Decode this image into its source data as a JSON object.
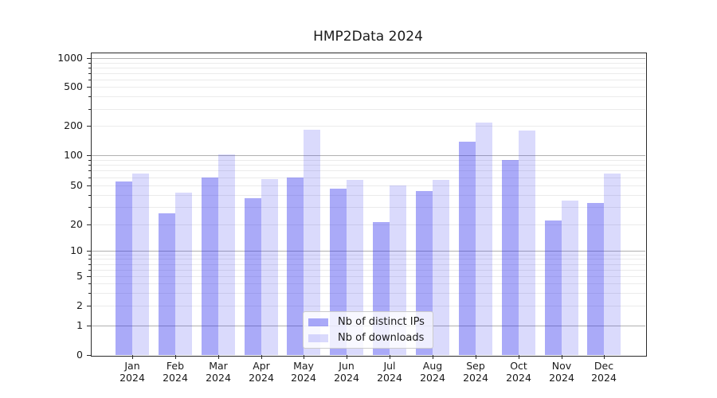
{
  "figure": {
    "background": "#ffffff",
    "text_color": "#1a1a1a"
  },
  "chart_data": {
    "type": "bar",
    "title": "HMP2Data 2024",
    "categories": [
      "Jan 2024",
      "Feb 2024",
      "Mar 2024",
      "Apr 2024",
      "May 2024",
      "Jun 2024",
      "Jul 2024",
      "Aug 2024",
      "Sep 2024",
      "Oct 2024",
      "Nov 2024",
      "Dec 2024"
    ],
    "series": [
      {
        "name": "Nb of distinct IPs",
        "color": "rgba(45,45,238,0.405)",
        "color_hex": "#aaaaf8",
        "values": [
          55,
          26,
          60,
          37,
          60,
          46,
          21,
          44,
          139,
          90,
          22,
          33
        ]
      },
      {
        "name": "Nb of downloads",
        "color": "rgba(45,45,238,0.175)",
        "color_hex": "#dadafc",
        "values": [
          65,
          42,
          102,
          58,
          184,
          57,
          50,
          57,
          216,
          179,
          35,
          65
        ]
      }
    ],
    "xlabel": "",
    "ylabel": "",
    "y_axis": {
      "scale": "symlog",
      "ticks": [
        0,
        1,
        2,
        5,
        10,
        20,
        50,
        100,
        200,
        500,
        1000
      ],
      "range": [
        0,
        1150
      ]
    },
    "grid": true,
    "legend_position": "lower-center"
  }
}
